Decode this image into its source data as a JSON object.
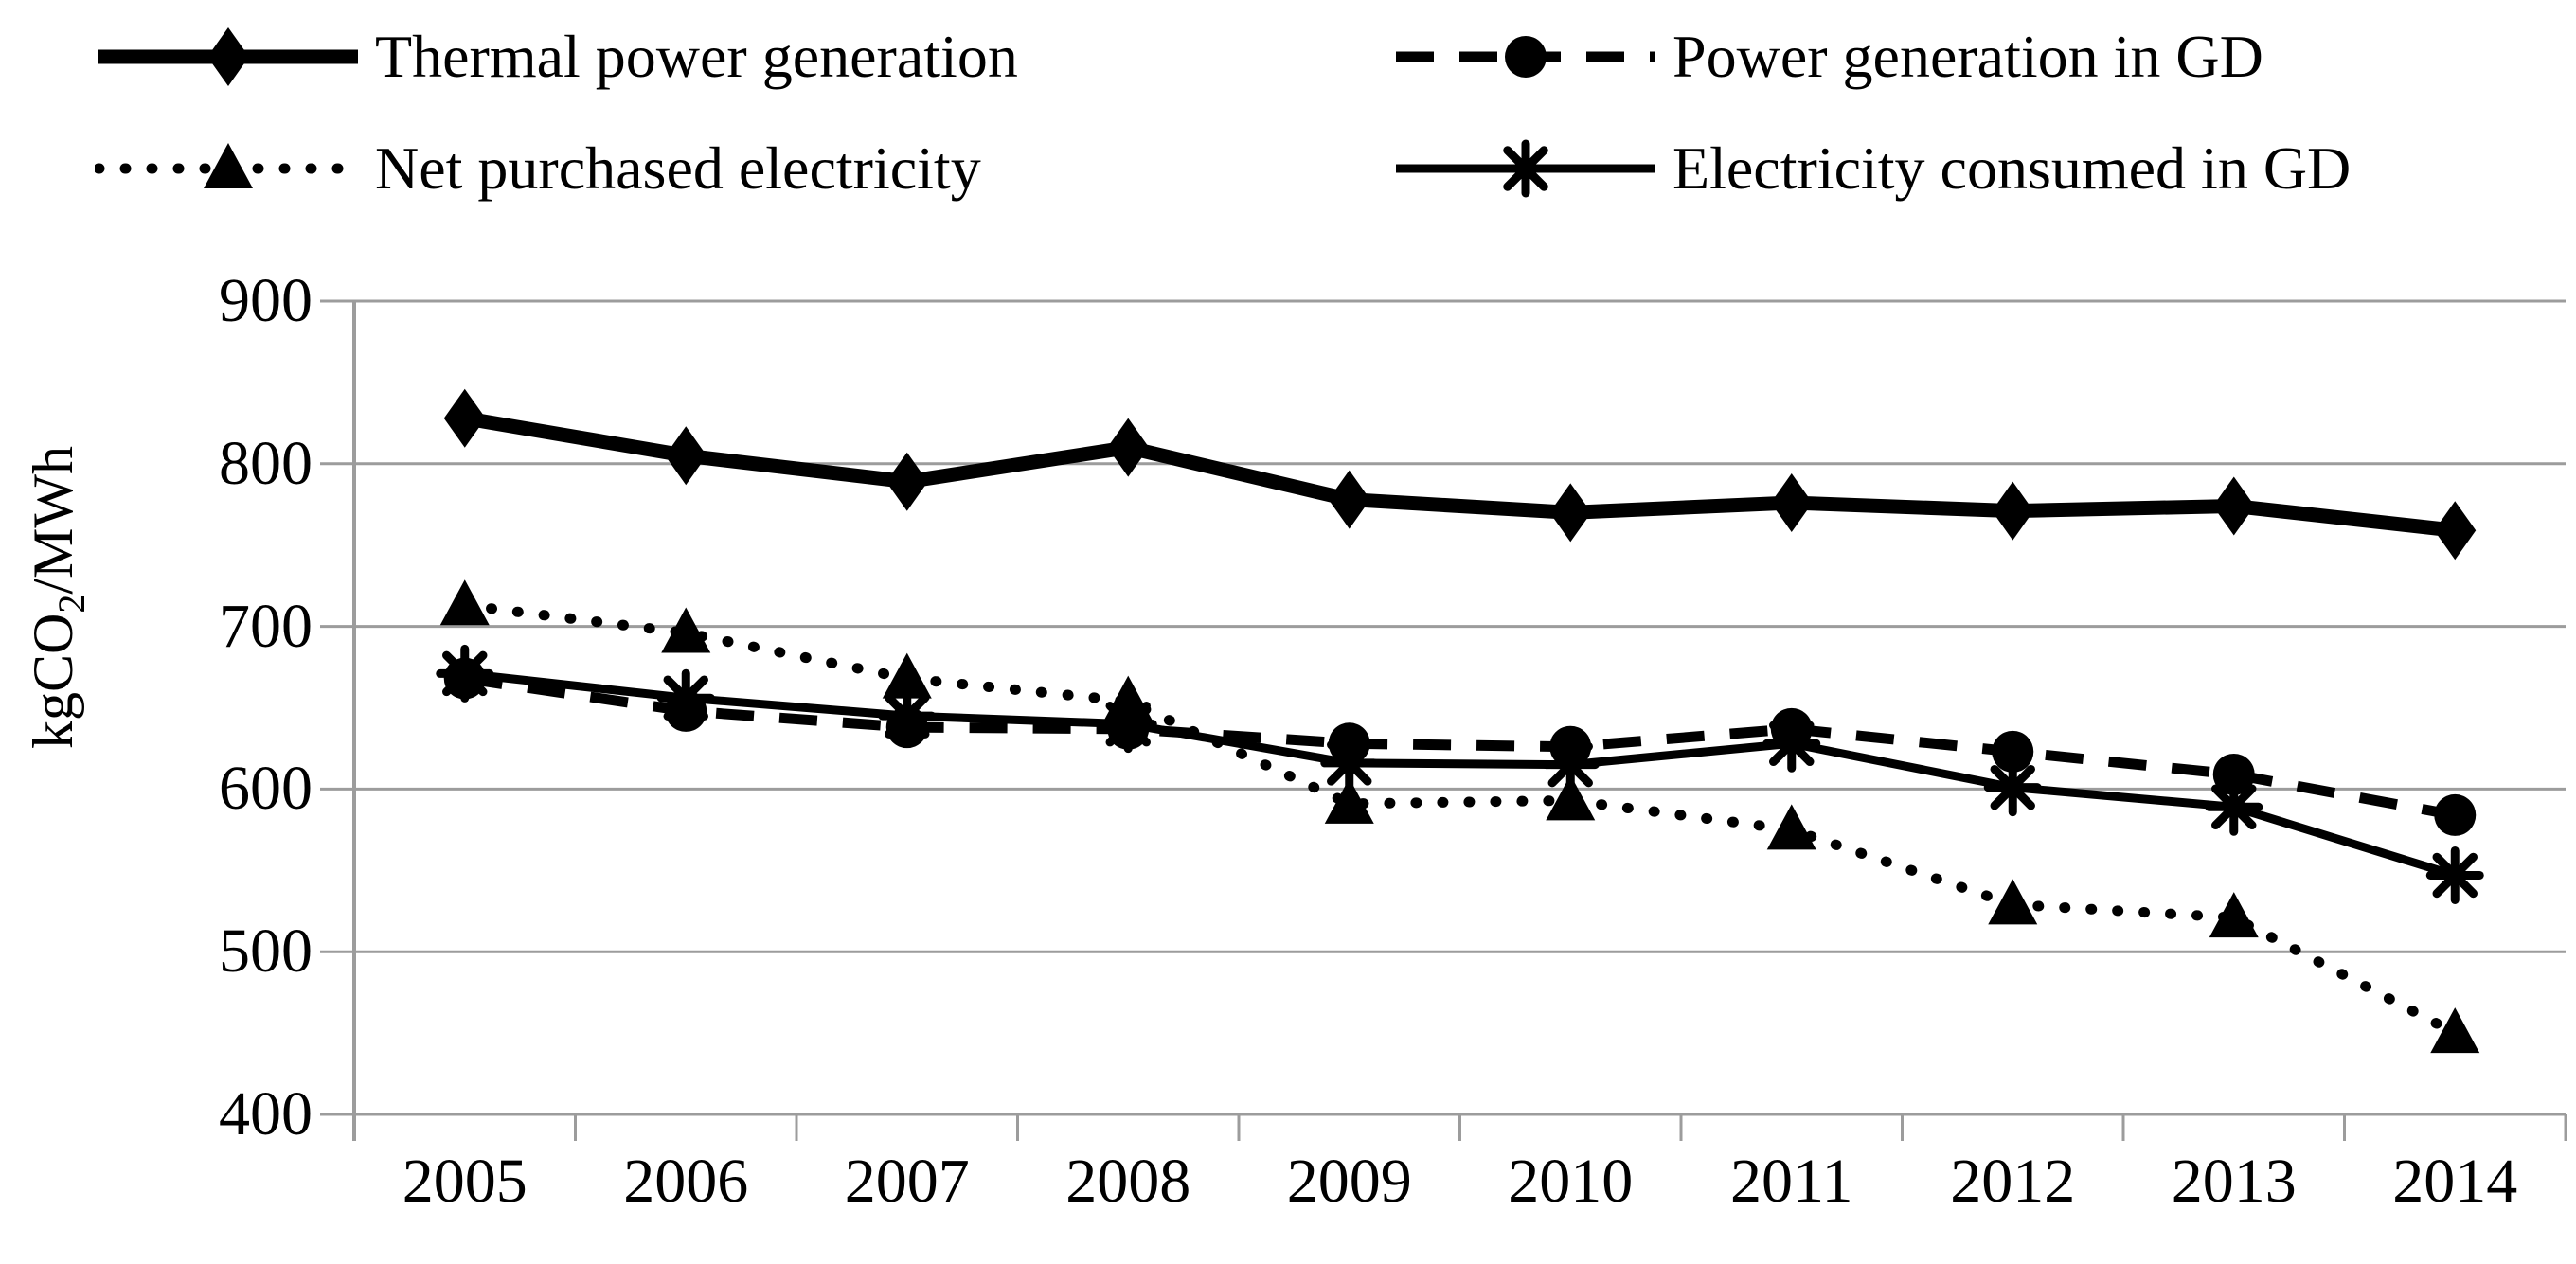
{
  "y_axis_label": {
    "prefix": "kgCO",
    "subscript": "2",
    "suffix": "/MWh"
  },
  "chart_data": {
    "type": "line",
    "title": "",
    "xlabel": "",
    "ylabel": "kgCO2/MWh",
    "categories": [
      "2005",
      "2006",
      "2007",
      "2008",
      "2009",
      "2010",
      "2011",
      "2012",
      "2013",
      "2014"
    ],
    "series": [
      {
        "name": "Thermal power generation",
        "marker": "diamond",
        "line_style": "solid-thick",
        "values": [
          828,
          805,
          789,
          810,
          778,
          770,
          776,
          771,
          774,
          759
        ]
      },
      {
        "name": "Power generation in GD",
        "marker": "circle",
        "line_style": "dashed",
        "values": [
          668,
          648,
          638,
          637,
          628,
          626,
          637,
          623,
          609,
          584
        ]
      },
      {
        "name": "Net purchased electricity",
        "marker": "triangle",
        "line_style": "dotted",
        "values": [
          713,
          696,
          668,
          654,
          591,
          593,
          575,
          529,
          521,
          450
        ]
      },
      {
        "name": "Electricity consumed in GD",
        "marker": "asterisk",
        "line_style": "solid",
        "values": [
          671,
          656,
          645,
          640,
          616,
          615,
          628,
          601,
          589,
          547
        ]
      }
    ],
    "ylim": [
      400,
      900
    ],
    "ytick_step": 100,
    "yticks": [
      "900",
      "800",
      "700",
      "600",
      "500",
      "400"
    ],
    "grid": "horizontal",
    "legend_position": "top",
    "colors": {
      "series": "#000000",
      "grid": "#9c9c9c",
      "text": "#000000"
    }
  }
}
